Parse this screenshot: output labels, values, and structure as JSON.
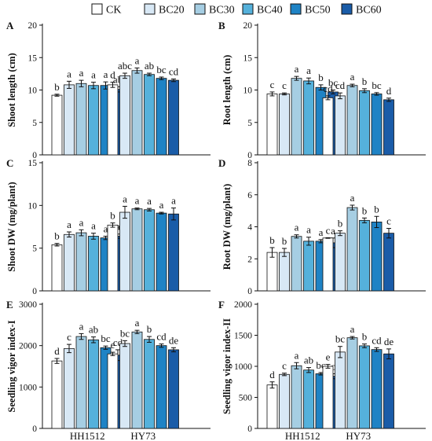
{
  "colors": {
    "series": [
      "#ffffff",
      "#d8e8f5",
      "#a6cee3",
      "#55b1db",
      "#1f83c5",
      "#1a5ca8"
    ],
    "stroke": "#111111"
  },
  "legend": {
    "labels": [
      "CK",
      "BC20",
      "BC30",
      "BC40",
      "BC50",
      "BC60"
    ],
    "placement": "top"
  },
  "chart_data": [
    {
      "id": "A",
      "type": "bar",
      "ylabel": "Shoot length (cm)",
      "ylim": [
        0,
        20
      ],
      "yticks": [
        0,
        5,
        10,
        15,
        20
      ],
      "categories": [
        "HH1512",
        "HY73"
      ],
      "show_xlabels": false,
      "series": [
        {
          "name": "CK",
          "values": [
            9.2,
            10.8
          ],
          "errors": [
            0.15,
            0.4
          ],
          "letters": [
            "b",
            "d"
          ]
        },
        {
          "name": "BC20",
          "values": [
            10.8,
            12.2
          ],
          "errors": [
            0.55,
            0.4
          ],
          "letters": [
            "a",
            "abc"
          ]
        },
        {
          "name": "BC30",
          "values": [
            11.0,
            13.0
          ],
          "errors": [
            0.5,
            0.4
          ],
          "letters": [
            "a",
            "a"
          ]
        },
        {
          "name": "BC40",
          "values": [
            10.7,
            12.4
          ],
          "errors": [
            0.5,
            0.2
          ],
          "letters": [
            "a",
            "ab"
          ]
        },
        {
          "name": "BC50",
          "values": [
            10.7,
            11.8
          ],
          "errors": [
            0.55,
            0.2
          ],
          "letters": [
            "a",
            "bc"
          ]
        },
        {
          "name": "BC60",
          "values": [
            10.1,
            11.5
          ],
          "errors": [
            0.4,
            0.2
          ],
          "letters": [
            "ab",
            "cd"
          ]
        }
      ]
    },
    {
      "id": "B",
      "type": "bar",
      "ylabel": "Root length (cm)",
      "ylim": [
        0,
        20
      ],
      "yticks": [
        0,
        5,
        10,
        15,
        20
      ],
      "categories": [
        "HH1512",
        "HY73"
      ],
      "show_xlabels": false,
      "series": [
        {
          "name": "CK",
          "values": [
            9.4,
            8.8
          ],
          "errors": [
            0.3,
            0.3
          ],
          "letters": [
            "c",
            "cd"
          ]
        },
        {
          "name": "BC20",
          "values": [
            9.4,
            9.1
          ],
          "errors": [
            0.15,
            0.45
          ],
          "letters": [
            "c",
            "cd"
          ]
        },
        {
          "name": "BC30",
          "values": [
            11.8,
            10.7
          ],
          "errors": [
            0.3,
            0.2
          ],
          "letters": [
            "a",
            "a"
          ]
        },
        {
          "name": "BC40",
          "values": [
            11.4,
            9.9
          ],
          "errors": [
            0.45,
            0.3
          ],
          "letters": [
            "a",
            "b"
          ]
        },
        {
          "name": "BC50",
          "values": [
            10.4,
            9.4
          ],
          "errors": [
            0.4,
            0.2
          ],
          "letters": [
            "b",
            "bc"
          ]
        },
        {
          "name": "BC60",
          "values": [
            9.7,
            8.5
          ],
          "errors": [
            0.3,
            0.25
          ],
          "letters": [
            "bc",
            "d"
          ]
        }
      ]
    },
    {
      "id": "C",
      "type": "bar",
      "ylabel": "Shoot DW (mg/plant)",
      "ylim": [
        0,
        15
      ],
      "yticks": [
        0,
        5,
        10,
        15
      ],
      "categories": [
        "HH1512",
        "HY73"
      ],
      "show_xlabels": false,
      "series": [
        {
          "name": "CK",
          "values": [
            5.4,
            7.7
          ],
          "errors": [
            0.15,
            0.25
          ],
          "letters": [
            "b",
            "b"
          ]
        },
        {
          "name": "BC20",
          "values": [
            6.6,
            9.2
          ],
          "errors": [
            0.3,
            0.7
          ],
          "letters": [
            "a",
            "a"
          ]
        },
        {
          "name": "BC30",
          "values": [
            6.8,
            9.6
          ],
          "errors": [
            0.35,
            0.1
          ],
          "letters": [
            "a",
            "a"
          ]
        },
        {
          "name": "BC40",
          "values": [
            6.4,
            9.5
          ],
          "errors": [
            0.35,
            0.15
          ],
          "letters": [
            "a",
            "a"
          ]
        },
        {
          "name": "BC50",
          "values": [
            6.2,
            9.1
          ],
          "errors": [
            0.2,
            0.1
          ],
          "letters": [
            "a",
            "a"
          ]
        },
        {
          "name": "BC60",
          "values": [
            6.4,
            9.0
          ],
          "errors": [
            0.25,
            0.7
          ],
          "letters": [
            "a",
            "a"
          ]
        }
      ]
    },
    {
      "id": "D",
      "type": "bar",
      "ylabel": "Root DW (mg/plant)",
      "ylim": [
        0,
        8
      ],
      "yticks": [
        0,
        2,
        4,
        6,
        8
      ],
      "categories": [
        "HH1512",
        "HY73"
      ],
      "show_xlabels": false,
      "series": [
        {
          "name": "CK",
          "values": [
            2.4,
            3.3
          ],
          "errors": [
            0.3,
            0.02
          ],
          "letters": [
            "b",
            "c"
          ]
        },
        {
          "name": "BC20",
          "values": [
            2.4,
            3.6
          ],
          "errors": [
            0.25,
            0.15
          ],
          "letters": [
            "b",
            "b"
          ]
        },
        {
          "name": "BC30",
          "values": [
            3.4,
            5.2
          ],
          "errors": [
            0.1,
            0.15
          ],
          "letters": [
            "a",
            "a"
          ]
        },
        {
          "name": "BC40",
          "values": [
            3.1,
            4.4
          ],
          "errors": [
            0.25,
            0.15
          ],
          "letters": [
            "a",
            "b"
          ]
        },
        {
          "name": "BC50",
          "values": [
            3.1,
            4.3
          ],
          "errors": [
            0.1,
            0.35
          ],
          "letters": [
            "a",
            "b"
          ]
        },
        {
          "name": "BC60",
          "values": [
            3.0,
            3.6
          ],
          "errors": [
            0.3,
            0.3
          ],
          "letters": [
            "a",
            "c"
          ]
        }
      ]
    },
    {
      "id": "E",
      "type": "bar",
      "ylabel": "Seedling vigor index-I",
      "ylim": [
        0,
        3000
      ],
      "yticks": [
        0,
        1000,
        2000,
        3000
      ],
      "categories": [
        "HH1512",
        "HY73"
      ],
      "show_xlabels": true,
      "series": [
        {
          "name": "CK",
          "values": [
            1630,
            1800
          ],
          "errors": [
            60,
            40
          ],
          "letters": [
            "d",
            "e"
          ]
        },
        {
          "name": "BC20",
          "values": [
            1930,
            2050
          ],
          "errors": [
            100,
            70
          ],
          "letters": [
            "c",
            "bc"
          ]
        },
        {
          "name": "BC30",
          "values": [
            2220,
            2330
          ],
          "errors": [
            70,
            40
          ],
          "letters": [
            "a",
            "a"
          ]
        },
        {
          "name": "BC40",
          "values": [
            2140,
            2150
          ],
          "errors": [
            70,
            70
          ],
          "letters": [
            "ab",
            "b"
          ]
        },
        {
          "name": "BC50",
          "values": [
            1950,
            2000
          ],
          "errors": [
            40,
            40
          ],
          "letters": [
            "bc",
            "cd"
          ]
        },
        {
          "name": "BC60",
          "values": [
            1770,
            1900
          ],
          "errors": [
            130,
            50
          ],
          "letters": [
            "cd",
            "de"
          ]
        }
      ]
    },
    {
      "id": "F",
      "type": "bar",
      "ylabel": "Seedling vigor index-II",
      "ylim": [
        0,
        2000
      ],
      "yticks": [
        0,
        500,
        1000,
        1500,
        2000
      ],
      "categories": [
        "HH1512",
        "HY73"
      ],
      "show_xlabels": true,
      "series": [
        {
          "name": "CK",
          "values": [
            700,
            1000
          ],
          "errors": [
            50,
            30
          ],
          "letters": [
            "d",
            "e"
          ]
        },
        {
          "name": "BC20",
          "values": [
            870,
            1230
          ],
          "errors": [
            20,
            90
          ],
          "letters": [
            "c",
            "bc"
          ]
        },
        {
          "name": "BC30",
          "values": [
            1010,
            1460
          ],
          "errors": [
            50,
            20
          ],
          "letters": [
            "a",
            "a"
          ]
        },
        {
          "name": "BC40",
          "values": [
            940,
            1330
          ],
          "errors": [
            40,
            30
          ],
          "letters": [
            "ab",
            "b"
          ]
        },
        {
          "name": "BC50",
          "values": [
            880,
            1270
          ],
          "errors": [
            20,
            30
          ],
          "letters": [
            "bc",
            "cd"
          ]
        },
        {
          "name": "BC60",
          "values": [
            840,
            1200
          ],
          "errors": [
            40,
            80
          ],
          "letters": [
            "c",
            "de"
          ]
        }
      ]
    }
  ]
}
